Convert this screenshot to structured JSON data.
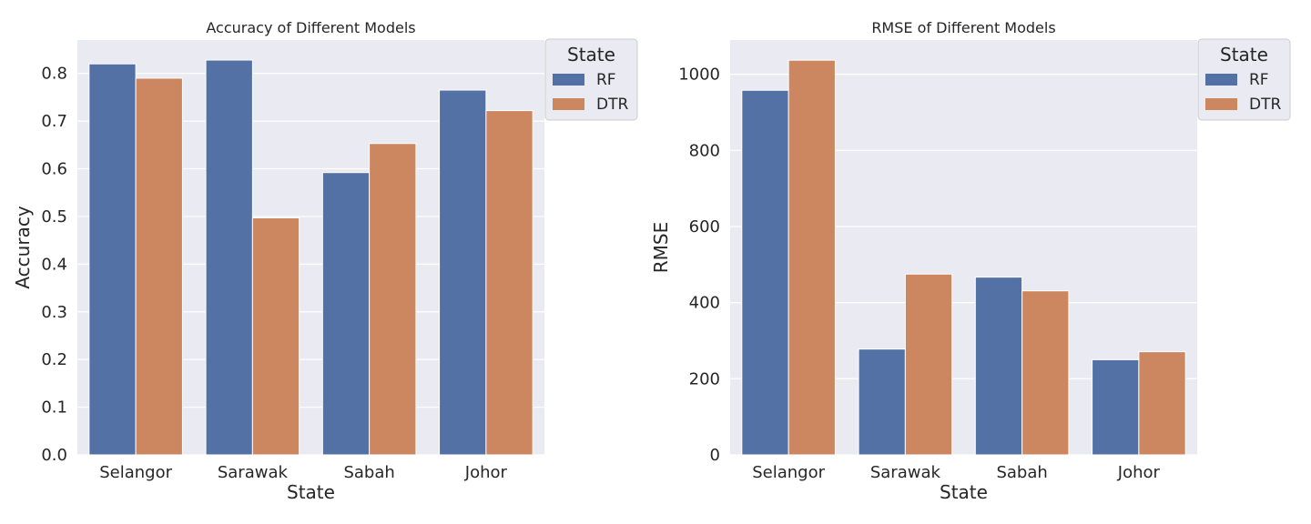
{
  "chart_data": [
    {
      "type": "bar",
      "title": "Accuracy of Different Models",
      "xlabel": "State",
      "ylabel": "Accuracy",
      "categories": [
        "Selangor",
        "Sarawak",
        "Sabah",
        "Johor"
      ],
      "ylim": [
        0,
        0.87
      ],
      "yticks": [
        "0.0",
        "0.1",
        "0.2",
        "0.3",
        "0.4",
        "0.5",
        "0.6",
        "0.7",
        "0.8"
      ],
      "grid": true,
      "legend": {
        "title": "State",
        "placement": "outside top-right"
      },
      "series": [
        {
          "name": "RF",
          "color": "#5471a5",
          "values": [
            0.82,
            0.828,
            0.592,
            0.765
          ]
        },
        {
          "name": "DTR",
          "color": "#cd8760",
          "values": [
            0.79,
            0.497,
            0.653,
            0.722
          ]
        }
      ]
    },
    {
      "type": "bar",
      "title": "RMSE of Different Models",
      "xlabel": "State",
      "ylabel": "RMSE",
      "categories": [
        "Selangor",
        "Sarawak",
        "Sabah",
        "Johor"
      ],
      "ylim": [
        0,
        1090
      ],
      "yticks": [
        "0",
        "200",
        "400",
        "600",
        "800",
        "1000"
      ],
      "grid": true,
      "legend": {
        "title": "State",
        "placement": "outside top-right"
      },
      "series": [
        {
          "name": "RF",
          "color": "#5471a5",
          "values": [
            958,
            278,
            467,
            250
          ]
        },
        {
          "name": "DTR",
          "color": "#cd8760",
          "values": [
            1037,
            475,
            431,
            271
          ]
        }
      ]
    }
  ]
}
